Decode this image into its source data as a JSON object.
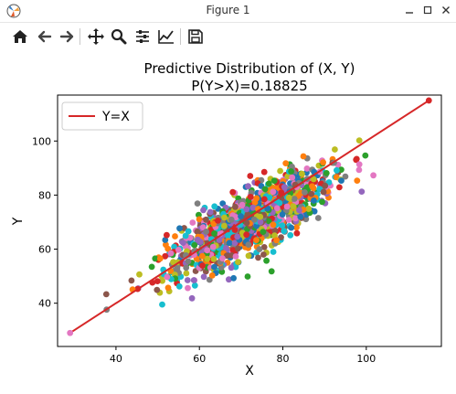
{
  "window": {
    "title": "Figure 1",
    "minimize_glyph": "🗕",
    "maximize_glyph": "☐",
    "close_glyph": "✕"
  },
  "toolbar": {
    "icons": [
      "home-icon",
      "back-arrow-icon",
      "forward-arrow-icon",
      "pan-icon",
      "zoom-icon",
      "configure-subplots-icon",
      "edit-axis-icon",
      "save-icon"
    ]
  },
  "chart_data": {
    "type": "scatter",
    "title": "Predictive Distribution of (X, Y)",
    "subtitle": "P(Y>X)=0.18825",
    "xlabel": "X",
    "ylabel": "Y",
    "xlim": [
      26,
      118
    ],
    "ylim": [
      24,
      117
    ],
    "xticks": [
      40,
      60,
      80,
      100
    ],
    "yticks": [
      40,
      60,
      80,
      100
    ],
    "legend": {
      "label": "Y=X",
      "placement": "top-left",
      "color": "#d62728"
    },
    "line": {
      "name": "Y=X",
      "x": [
        29,
        115
      ],
      "y": [
        29,
        115
      ],
      "color": "#d62728"
    },
    "scatter_center": {
      "x": 72,
      "y": 70
    },
    "colors": [
      "#1f77b4",
      "#ff7f0e",
      "#2ca02c",
      "#d62728",
      "#9467bd",
      "#8c564b",
      "#e377c2",
      "#7f7f7f",
      "#bcbd22",
      "#17becf"
    ]
  }
}
